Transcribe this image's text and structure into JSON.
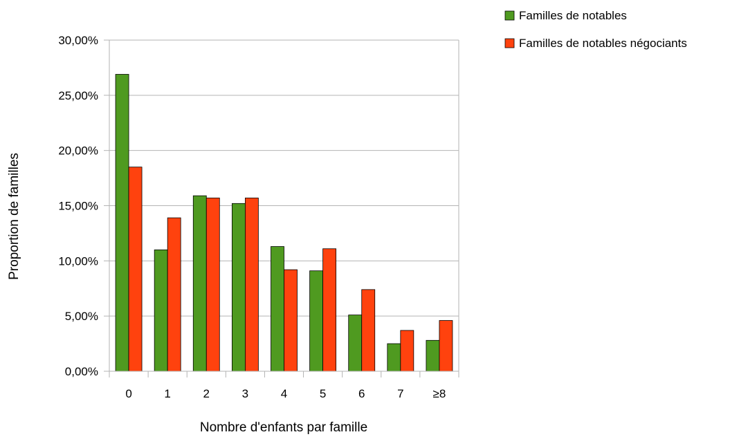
{
  "chart_data": {
    "type": "bar",
    "title": "",
    "xlabel": "Nombre d'enfants par famille",
    "ylabel": "Proportion de familles",
    "categories": [
      "0",
      "1",
      "2",
      "3",
      "4",
      "5",
      "6",
      "7",
      "≥8"
    ],
    "series": [
      {
        "name": "Familles de notables",
        "color": "#4f9a20",
        "values": [
          26.9,
          11.0,
          15.9,
          15.2,
          11.3,
          9.1,
          5.1,
          2.5,
          2.8
        ]
      },
      {
        "name": "Familles de notables négociants",
        "color": "#ff420e",
        "values": [
          18.5,
          13.9,
          15.7,
          15.7,
          9.2,
          11.1,
          7.4,
          3.7,
          4.6
        ]
      }
    ],
    "ylim": [
      0,
      30
    ],
    "yticks": [
      "0,00%",
      "5,00%",
      "10,00%",
      "15,00%",
      "20,00%",
      "25,00%",
      "30,00%"
    ],
    "grid": true,
    "legend_position": "top-right"
  }
}
